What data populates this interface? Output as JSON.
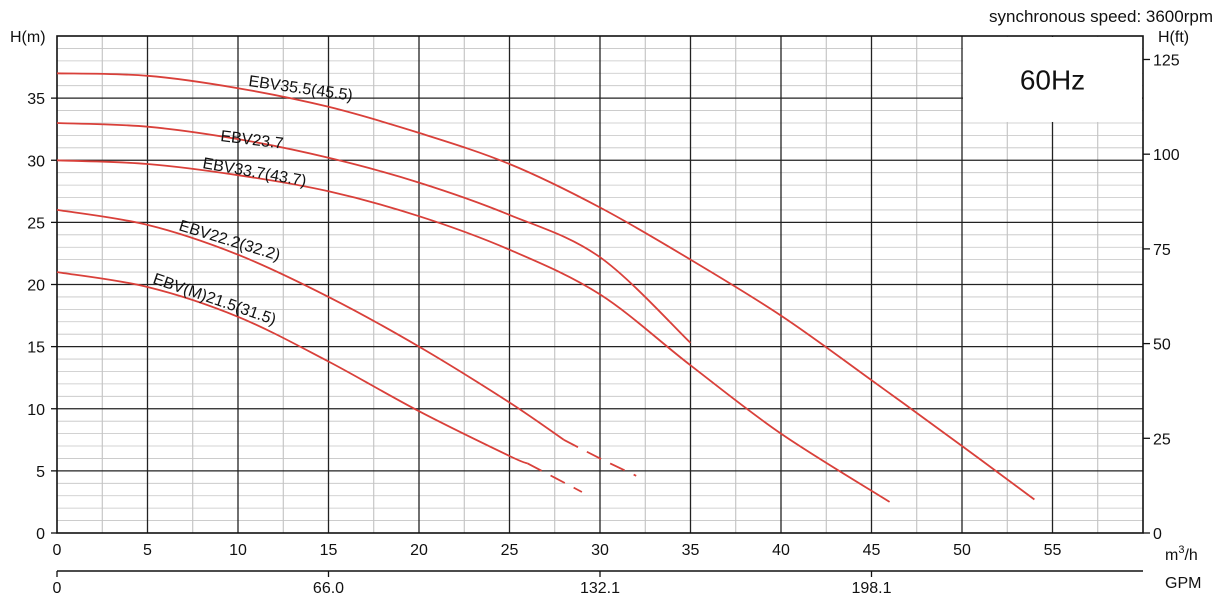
{
  "header": {
    "speed_note": "synchronous speed: 3600rpm"
  },
  "badge": {
    "frequency": "60Hz"
  },
  "chart_data": {
    "type": "line",
    "title": "",
    "xlabel": "m3/h",
    "xlabel_base": "m",
    "xlabel_sup": "3",
    "xlabel_tail": "/h",
    "x2label": "GPM",
    "ylabel": "H(m)",
    "y2label": "H(ft)",
    "xlim": [
      0,
      60
    ],
    "ylim": [
      0,
      40
    ],
    "y2lim": [
      0,
      131.2
    ],
    "x_ticks": [
      0,
      5,
      10,
      15,
      20,
      25,
      30,
      35,
      40,
      45,
      50,
      55
    ],
    "y_ticks": [
      0,
      5,
      10,
      15,
      20,
      25,
      30,
      35
    ],
    "y2_ticks": [
      0,
      25,
      50,
      75,
      100,
      125
    ],
    "x2_ticks": [
      {
        "at": 0,
        "label": "0"
      },
      {
        "at": 15,
        "label": "66.0"
      },
      {
        "at": 30,
        "label": "132.1"
      },
      {
        "at": 45,
        "label": "198.1"
      }
    ],
    "grid": true,
    "color": "#d9403a",
    "series": [
      {
        "name": "EBV35.5(45.5)",
        "points": [
          [
            0,
            37
          ],
          [
            5,
            36.8
          ],
          [
            10,
            35.8
          ],
          [
            15,
            34.3
          ],
          [
            20,
            32.2
          ],
          [
            25,
            29.7
          ],
          [
            30,
            26.2
          ],
          [
            35,
            22
          ],
          [
            40,
            17.5
          ],
          [
            45,
            12.3
          ],
          [
            50,
            7
          ],
          [
            54,
            2.7
          ]
        ],
        "dashed_from": null
      },
      {
        "name": "EBV23.7",
        "points": [
          [
            0,
            33
          ],
          [
            5,
            32.7
          ],
          [
            10,
            31.7
          ],
          [
            15,
            30.2
          ],
          [
            20,
            28.2
          ],
          [
            25,
            25.6
          ],
          [
            30,
            22.2
          ],
          [
            35,
            15.3
          ]
        ],
        "dashed_from": null
      },
      {
        "name": "EBV33.7(43.7)",
        "points": [
          [
            0,
            30
          ],
          [
            5,
            29.7
          ],
          [
            10,
            28.8
          ],
          [
            15,
            27.5
          ],
          [
            20,
            25.5
          ],
          [
            25,
            22.8
          ],
          [
            30,
            19.2
          ],
          [
            35,
            13.5
          ],
          [
            40,
            8
          ],
          [
            46,
            2.5
          ]
        ],
        "dashed_from": null
      },
      {
        "name": "EBV22.2(32.2)",
        "points": [
          [
            0,
            26
          ],
          [
            5,
            24.8
          ],
          [
            10,
            22.4
          ],
          [
            15,
            19
          ],
          [
            20,
            15
          ],
          [
            25,
            10.5
          ],
          [
            28,
            7.5
          ],
          [
            30,
            6
          ],
          [
            32,
            4.6
          ]
        ],
        "dashed_from": 28
      },
      {
        "name": "EBV(M)21.5(31.5)",
        "points": [
          [
            0,
            21
          ],
          [
            5,
            19.8
          ],
          [
            10,
            17.4
          ],
          [
            15,
            13.8
          ],
          [
            20,
            9.8
          ],
          [
            25,
            6.2
          ],
          [
            26,
            5.6
          ],
          [
            29,
            3.3
          ]
        ],
        "dashed_from": 26
      }
    ]
  }
}
